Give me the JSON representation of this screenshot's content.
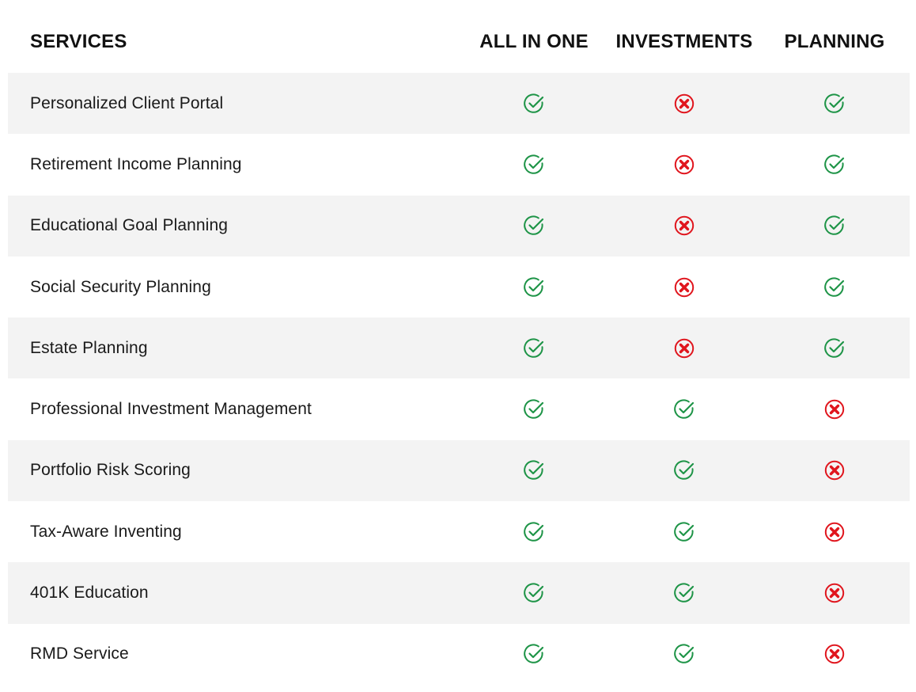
{
  "colors": {
    "check": "#1e9447",
    "cross": "#e0151d",
    "row_shade": "#f3f3f3"
  },
  "header": {
    "services": "SERVICES",
    "plans": [
      "ALL IN ONE",
      "INVESTMENTS",
      "PLANNING"
    ]
  },
  "rows": [
    {
      "label": "Personalized Client Portal",
      "marks": [
        "check",
        "cross",
        "check"
      ]
    },
    {
      "label": "Retirement Income Planning",
      "marks": [
        "check",
        "cross",
        "check"
      ]
    },
    {
      "label": "Educational Goal Planning",
      "marks": [
        "check",
        "cross",
        "check"
      ]
    },
    {
      "label": "Social Security Planning",
      "marks": [
        "check",
        "cross",
        "check"
      ]
    },
    {
      "label": "Estate Planning",
      "marks": [
        "check",
        "cross",
        "check"
      ]
    },
    {
      "label": "Professional Investment Management",
      "marks": [
        "check",
        "check",
        "cross"
      ]
    },
    {
      "label": "Portfolio Risk Scoring",
      "marks": [
        "check",
        "check",
        "cross"
      ]
    },
    {
      "label": "Tax-Aware Inventing",
      "marks": [
        "check",
        "check",
        "cross"
      ]
    },
    {
      "label": "401K Education",
      "marks": [
        "check",
        "check",
        "cross"
      ]
    },
    {
      "label": "RMD Service",
      "marks": [
        "check",
        "check",
        "cross"
      ]
    }
  ]
}
